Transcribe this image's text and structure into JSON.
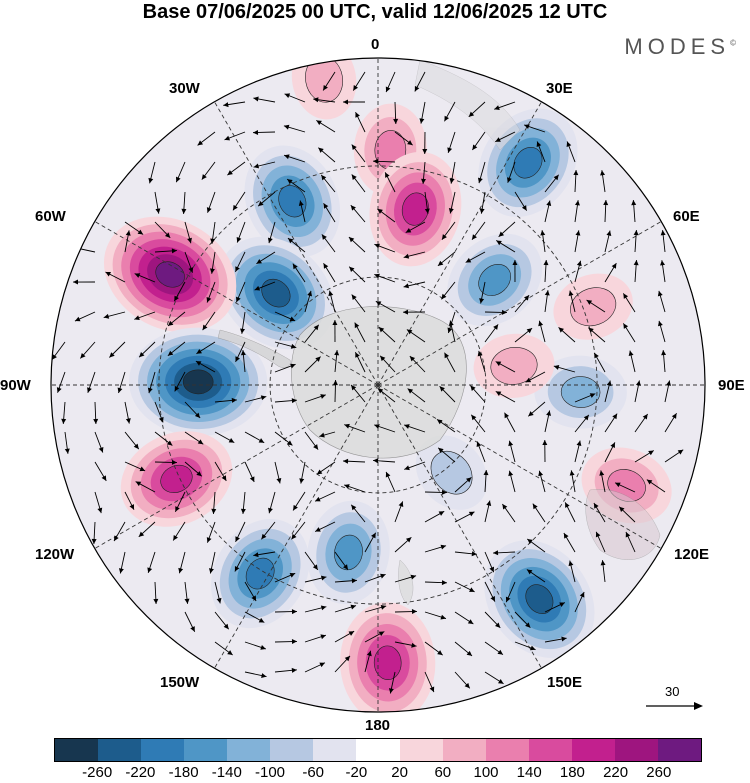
{
  "title": "Base 07/06/2025 00 UTC, valid 12/06/2025 12 UTC",
  "brand": "MODES",
  "brand_mark": "©",
  "longitude_labels": {
    "top": "0",
    "top_right": "30E",
    "right_upper": "60E",
    "right": "90E",
    "right_lower": "120E",
    "bottom_right": "150E",
    "bottom": "180",
    "bottom_left": "150W",
    "left_lower": "120W",
    "left": "90W",
    "left_upper": "60W",
    "top_left": "30W"
  },
  "reference_vector": "30",
  "colorbar": {
    "colors": [
      "#17364f",
      "#1d5c8c",
      "#2f7bb5",
      "#4f96c6",
      "#82b2d8",
      "#b6c8e2",
      "#e2e3ef",
      "#ffffff",
      "#f8d6dc",
      "#f2aec2",
      "#ea7fae",
      "#d94b9e",
      "#c2208e",
      "#9e157f",
      "#6e1a80"
    ],
    "tick_labels": [
      "-260",
      "-220",
      "-180",
      "-140",
      "-100",
      "-60",
      "-20",
      "20",
      "60",
      "100",
      "140",
      "180",
      "220",
      "260"
    ]
  },
  "map": {
    "projection": "south polar stereographic",
    "anomalies": [
      {
        "lon": -25,
        "colat": 0.62,
        "value": -180
      },
      {
        "lon": -48,
        "colat": 0.42,
        "value": -220
      },
      {
        "lon": 3,
        "colat": 0.72,
        "value": 100
      },
      {
        "lon": 12,
        "colat": 0.55,
        "value": 180
      },
      {
        "lon": 34,
        "colat": 0.82,
        "value": -180
      },
      {
        "lon": 48,
        "colat": 0.48,
        "value": -140
      },
      {
        "lon": -62,
        "colat": 0.72,
        "value": 260
      },
      {
        "lon": -89,
        "colat": 0.55,
        "value": -260
      },
      {
        "lon": -115,
        "colat": 0.68,
        "value": 180
      },
      {
        "lon": -148,
        "colat": 0.68,
        "value": -180
      },
      {
        "lon": -170,
        "colat": 0.52,
        "value": -140
      },
      {
        "lon": 178,
        "colat": 0.85,
        "value": 200
      },
      {
        "lon": 143,
        "colat": 0.82,
        "value": -220
      },
      {
        "lon": 112,
        "colat": 0.82,
        "value": 100
      },
      {
        "lon": 92,
        "colat": 0.62,
        "value": -100
      },
      {
        "lon": 82,
        "colat": 0.42,
        "value": 60
      },
      {
        "lon": 140,
        "colat": 0.35,
        "value": -60
      },
      {
        "lon": 70,
        "colat": 0.7,
        "value": 60
      },
      {
        "lon": -10,
        "colat": 0.95,
        "value": 60
      }
    ]
  }
}
